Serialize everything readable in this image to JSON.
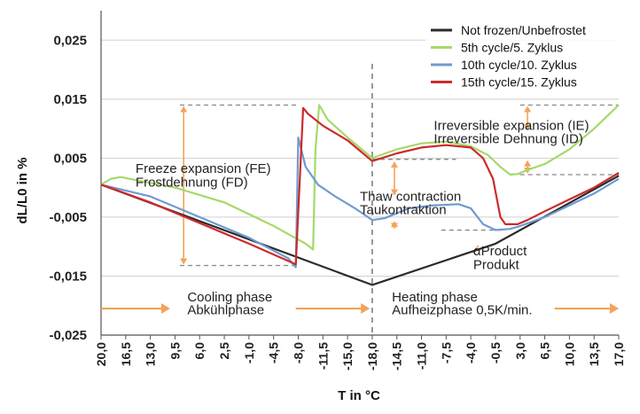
{
  "chart_data": {
    "type": "line",
    "title": "",
    "xlabel": "T in °C",
    "ylabel": "dL/L0 in %",
    "ylim": [
      -0.025,
      0.03
    ],
    "yticks": [
      "0,025",
      "0,015",
      "0,005",
      "-0,005",
      "-0,015",
      "-0,025"
    ],
    "xticks": [
      "20,0",
      "16,5",
      "13,0",
      "9,5",
      "6,0",
      "2,5",
      "-1,0",
      "-4,5",
      "-8,0",
      "-11,5",
      "-15,0",
      "-18,0",
      "-14,5",
      "-11,0",
      "-7,5",
      "-4,0",
      "-0,5",
      "3,0",
      "6,5",
      "10,0",
      "13,5",
      "17,0"
    ],
    "x_note": "Temperature axis: cooling 20,0 → -18,0 °C, then heating -18,0 → 20 °C (x below = step index along the cycle)",
    "grid": "horizontal",
    "legend_position": "top-right",
    "legend": [
      {
        "name": "Not frozen/Unbefrostet",
        "color": "#2b2b2b"
      },
      {
        "name": "5th cycle/5. Zyklus",
        "color": "#a6d96a"
      },
      {
        "name": "10th cycle/10. Zyklus",
        "color": "#6f9bd1"
      },
      {
        "name": "15th cycle/15. Zyklus",
        "color": "#cc2a2a"
      }
    ],
    "series": [
      {
        "name": "Not frozen/Unbefrostet",
        "color": "#2b2b2b",
        "points": [
          [
            0,
            0.0005
          ],
          [
            11,
            -0.0165
          ],
          [
            16,
            -0.0095
          ],
          [
            21,
            0.002
          ]
        ]
      },
      {
        "name": "5th cycle/5. Zyklus",
        "color": "#a6d96a",
        "points": [
          [
            0,
            0.0005
          ],
          [
            0.4,
            0.0015
          ],
          [
            0.8,
            0.0018
          ],
          [
            1.5,
            0.0012
          ],
          [
            3,
            0.0
          ],
          [
            5,
            -0.0025
          ],
          [
            7,
            -0.0065
          ],
          [
            8.3,
            -0.0095
          ],
          [
            8.6,
            -0.0105
          ],
          [
            8.7,
            0.0065
          ],
          [
            8.85,
            0.014
          ],
          [
            9.2,
            0.0115
          ],
          [
            10,
            0.0085
          ],
          [
            11,
            0.005
          ],
          [
            12,
            0.0065
          ],
          [
            13,
            0.0075
          ],
          [
            14,
            0.0078
          ],
          [
            15,
            0.007
          ],
          [
            15.7,
            0.0055
          ],
          [
            16.2,
            0.0035
          ],
          [
            16.6,
            0.0022
          ],
          [
            16.9,
            0.0023
          ],
          [
            17.3,
            0.003
          ],
          [
            18,
            0.004
          ],
          [
            19,
            0.0065
          ],
          [
            20,
            0.01
          ],
          [
            21,
            0.014
          ]
        ]
      },
      {
        "name": "10th cycle/10. Zyklus",
        "color": "#6f9bd1",
        "points": [
          [
            0,
            0.0005
          ],
          [
            2,
            -0.0015
          ],
          [
            4,
            -0.005
          ],
          [
            6,
            -0.0085
          ],
          [
            7.6,
            -0.012
          ],
          [
            7.9,
            -0.0135
          ],
          [
            8.0,
            0.0085
          ],
          [
            8.3,
            0.0035
          ],
          [
            8.8,
            0.0005
          ],
          [
            9.5,
            -0.0015
          ],
          [
            10.3,
            -0.0035
          ],
          [
            11,
            -0.0055
          ],
          [
            11.5,
            -0.0052
          ],
          [
            12.5,
            -0.0035
          ],
          [
            13.5,
            -0.003
          ],
          [
            14.5,
            -0.0028
          ],
          [
            15,
            -0.0035
          ],
          [
            15.5,
            -0.0062
          ],
          [
            16,
            -0.0072
          ],
          [
            16.6,
            -0.007
          ],
          [
            17,
            -0.0065
          ],
          [
            18,
            -0.005
          ],
          [
            19,
            -0.003
          ],
          [
            20,
            -0.001
          ],
          [
            21,
            0.0015
          ]
        ]
      },
      {
        "name": "15th cycle/15. Zyklus",
        "color": "#cc2a2a",
        "points": [
          [
            0,
            0.0005
          ],
          [
            2,
            -0.0025
          ],
          [
            4,
            -0.006
          ],
          [
            6,
            -0.0095
          ],
          [
            7.9,
            -0.013
          ],
          [
            8.2,
            0.0135
          ],
          [
            8.4,
            0.0125
          ],
          [
            9,
            0.0105
          ],
          [
            10,
            0.008
          ],
          [
            11,
            0.0045
          ],
          [
            12,
            0.0058
          ],
          [
            13,
            0.0068
          ],
          [
            14,
            0.0072
          ],
          [
            15,
            0.0068
          ],
          [
            15.5,
            0.005
          ],
          [
            15.9,
            0.0015
          ],
          [
            16.2,
            -0.005
          ],
          [
            16.4,
            -0.0062
          ],
          [
            16.9,
            -0.0062
          ],
          [
            17.3,
            -0.0055
          ],
          [
            18,
            -0.004
          ],
          [
            19,
            -0.002
          ],
          [
            20,
            0.0
          ],
          [
            21,
            0.0025
          ]
        ]
      }
    ],
    "annotations": [
      {
        "text": "Freeze expansion (FE)",
        "x": 1.4,
        "y": 0.0025
      },
      {
        "text": "Frostdehnung (FD)",
        "x": 1.4,
        "y": 0.0002
      },
      {
        "text": "Thaw contraction",
        "x": 10.5,
        "y": -0.0022
      },
      {
        "text": "Taukontraktion",
        "x": 10.5,
        "y": -0.0045
      },
      {
        "text": "Irreversible expansion (IE)",
        "x": 13.5,
        "y": 0.0098
      },
      {
        "text": "Irreversible Dehnung (ID)",
        "x": 13.5,
        "y": 0.0075
      },
      {
        "text": "αProduct",
        "x": 15.1,
        "y": -0.0115
      },
      {
        "text": "Produkt",
        "x": 15.1,
        "y": -0.0138
      },
      {
        "text": "Cooling phase",
        "x": 3.5,
        "y": -0.0193
      },
      {
        "text": "Abkühlphase",
        "x": 3.5,
        "y": -0.0215
      },
      {
        "text": "Heating phase",
        "x": 11.8,
        "y": -0.0193
      },
      {
        "text": "Aufheizphase 0,5K/min.",
        "x": 11.8,
        "y": -0.0215
      }
    ]
  }
}
